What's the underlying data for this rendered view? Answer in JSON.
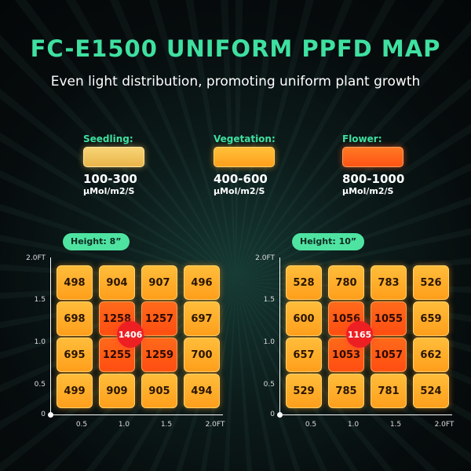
{
  "title": "FC-E1500 UNIFORM PPFD MAP",
  "subtitle": "Even light distribution, promoting uniform plant growth",
  "legend": [
    {
      "label": "Seedling:",
      "range": "100-300",
      "unit": "μMol/m2/S",
      "color": "#f3c560"
    },
    {
      "label": "Vegetation:",
      "range": "400-600",
      "unit": "μMol/m2/S",
      "color": "#ffb22a"
    },
    {
      "label": "Flower:",
      "range": "800-1000",
      "unit": "μMol/m2/S",
      "color": "#ff6a1a"
    }
  ],
  "axes": {
    "y_ticks": [
      "2.0FT",
      "1.5",
      "1.0",
      "0.5",
      "0"
    ],
    "x_ticks": [
      "0.5",
      "1.0",
      "1.5",
      "2.0FT"
    ]
  },
  "maps": [
    {
      "height_label": "Height: 8”",
      "center_value": "1406",
      "grid": [
        [
          "498",
          "904",
          "907",
          "496"
        ],
        [
          "698",
          "1258",
          "1257",
          "697"
        ],
        [
          "695",
          "1255",
          "1259",
          "700"
        ],
        [
          "499",
          "909",
          "905",
          "494"
        ]
      ]
    },
    {
      "height_label": "Height: 10”",
      "center_value": "1165",
      "grid": [
        [
          "528",
          "780",
          "783",
          "526"
        ],
        [
          "600",
          "1056",
          "1055",
          "659"
        ],
        [
          "657",
          "1053",
          "1057",
          "662"
        ],
        [
          "529",
          "785",
          "781",
          "524"
        ]
      ]
    }
  ]
}
